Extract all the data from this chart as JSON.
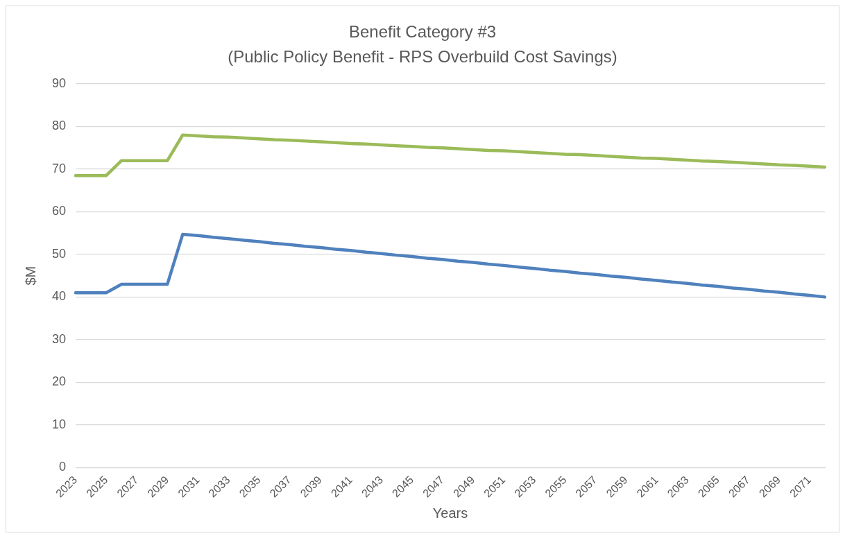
{
  "chart_data": {
    "type": "line",
    "title": "Benefit Category #3",
    "subtitle": "(Public Policy Benefit - RPS Overbuild Cost Savings)",
    "xlabel": "Years",
    "ylabel": "$M",
    "categories": [
      "2023",
      null,
      "2025",
      null,
      "2027",
      null,
      "2029",
      null,
      "2031",
      null,
      "2033",
      null,
      "2035",
      null,
      "2037",
      null,
      "2039",
      null,
      "2041",
      null,
      "2043",
      null,
      "2045",
      null,
      "2047",
      null,
      "2049",
      null,
      "2051",
      null,
      "2053",
      null,
      "2055",
      null,
      "2057",
      null,
      "2059",
      null,
      "2061",
      null,
      "2063",
      null,
      "2065",
      null,
      "2067",
      null,
      "2069",
      null,
      "2071",
      null
    ],
    "series": [
      {
        "color": "#9bbb59",
        "values": [
          68.5,
          68.5,
          68.5,
          72,
          72,
          72,
          72,
          78,
          77.8,
          77.6,
          77.5,
          77.3,
          77.1,
          76.9,
          76.8,
          76.6,
          76.4,
          76.2,
          76.0,
          75.9,
          75.7,
          75.5,
          75.3,
          75.1,
          75.0,
          74.8,
          74.6,
          74.4,
          74.3,
          74.1,
          73.9,
          73.7,
          73.5,
          73.4,
          73.2,
          73.0,
          72.8,
          72.6,
          72.5,
          72.3,
          72.1,
          71.9,
          71.8,
          71.6,
          71.4,
          71.2,
          71.0,
          70.9,
          70.7,
          70.5
        ]
      },
      {
        "color": "#4f81bd",
        "values": [
          41,
          41,
          41,
          43,
          43,
          43,
          43,
          54.7,
          54.4,
          54.0,
          53.7,
          53.3,
          53.0,
          52.6,
          52.3,
          51.9,
          51.6,
          51.2,
          50.9,
          50.5,
          50.2,
          49.8,
          49.5,
          49.1,
          48.8,
          48.4,
          48.1,
          47.7,
          47.4,
          47.0,
          46.7,
          46.3,
          46.0,
          45.6,
          45.3,
          44.9,
          44.6,
          44.2,
          43.9,
          43.5,
          43.2,
          42.8,
          42.5,
          42.1,
          41.8,
          41.4,
          41.1,
          40.7,
          40.4,
          40.0
        ]
      }
    ],
    "ylim": [
      0,
      90
    ],
    "yticks": [
      0,
      10,
      20,
      30,
      40,
      50,
      60,
      70,
      80,
      90
    ],
    "grid": "y",
    "legend": false,
    "marker": "none",
    "line_style": "solid"
  }
}
